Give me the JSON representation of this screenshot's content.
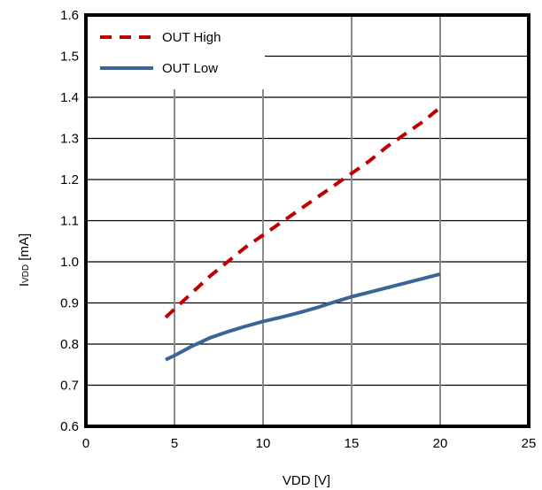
{
  "chart_data": {
    "type": "line",
    "title": "",
    "xlabel": "VDD [V]",
    "ylabel_main": "I",
    "ylabel_sub": "VDD",
    "ylabel_unit": " [mA]",
    "xlim": [
      0,
      25
    ],
    "ylim": [
      0.6,
      1.6
    ],
    "x_ticks": [
      "0",
      "5",
      "10",
      "15",
      "20",
      "25"
    ],
    "y_ticks": [
      "0.6",
      "0.7",
      "0.8",
      "0.9",
      "1.0",
      "1.1",
      "1.2",
      "1.3",
      "1.4",
      "1.5",
      "1.6"
    ],
    "grid": true,
    "legend_position": "top-left",
    "series": [
      {
        "name": "OUT High",
        "color": "#c00000",
        "style": "dashed",
        "x": [
          4.5,
          5,
          6,
          7,
          8,
          9,
          10,
          11,
          12,
          13,
          14,
          15,
          16,
          17,
          18,
          19,
          20
        ],
        "y": [
          0.865,
          0.885,
          0.925,
          0.965,
          1.0,
          1.035,
          1.065,
          1.095,
          1.125,
          1.155,
          1.185,
          1.215,
          1.245,
          1.28,
          1.31,
          1.34,
          1.375
        ]
      },
      {
        "name": "OUT Low",
        "color": "#3c6496",
        "style": "solid",
        "x": [
          4.5,
          5,
          6,
          7,
          8,
          9,
          10,
          11,
          12,
          13,
          14,
          15,
          16,
          17,
          18,
          19,
          20
        ],
        "y": [
          0.762,
          0.772,
          0.795,
          0.815,
          0.83,
          0.843,
          0.855,
          0.865,
          0.876,
          0.888,
          0.902,
          0.915,
          0.926,
          0.937,
          0.948,
          0.959,
          0.97
        ]
      }
    ]
  }
}
